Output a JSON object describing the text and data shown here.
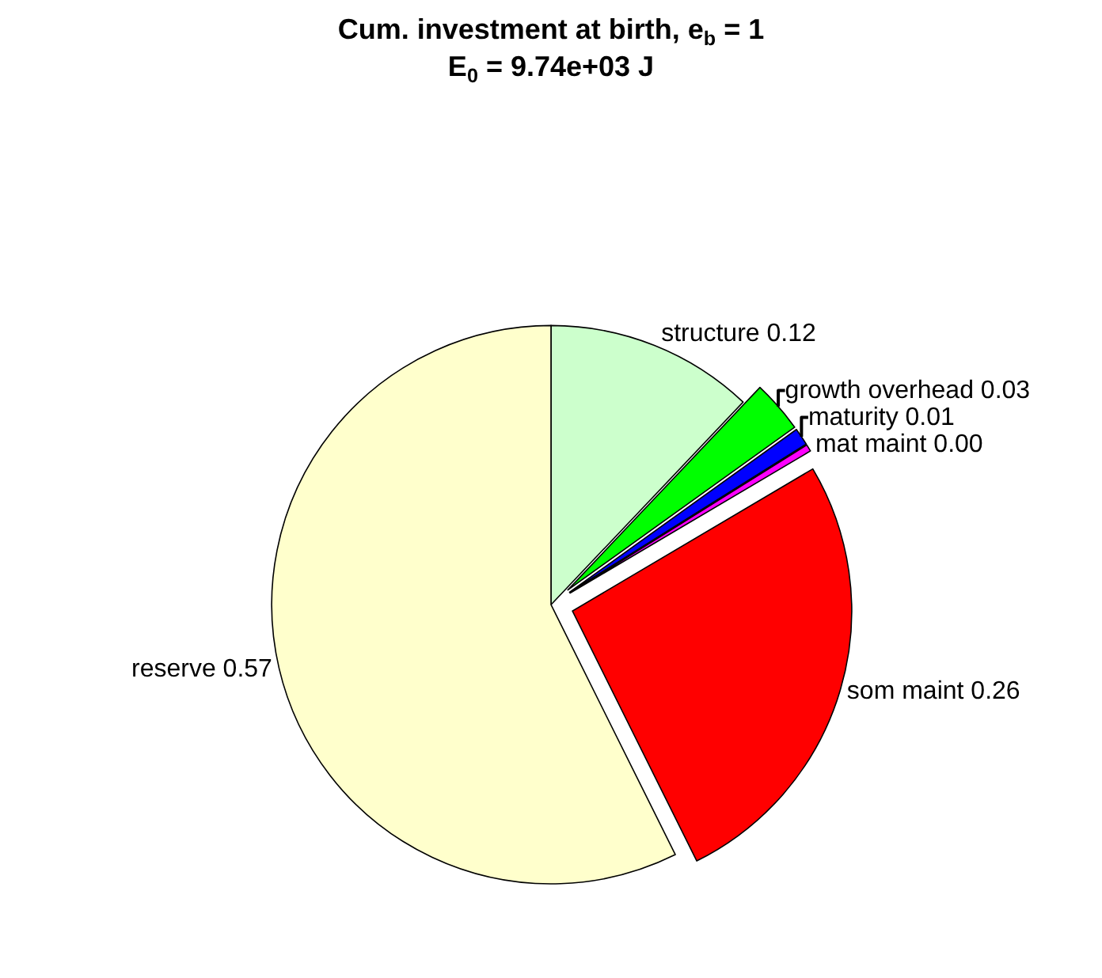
{
  "chart_data": {
    "type": "pie",
    "title": "Cum. investment at birth, e$_{b}$ = 1",
    "subtitle": "E$_{0}$ = 9.74e+03 J",
    "categories": [
      "structure",
      "growth overhead",
      "maturity",
      "mat maint",
      "som maint",
      "reserve"
    ],
    "values": [
      0.12,
      0.03,
      0.01,
      0.004,
      0.26,
      0.57
    ],
    "value_labels": [
      "0.12",
      "0.03",
      "0.01",
      "0.00",
      "0.26",
      "0.57"
    ],
    "colors": [
      "#ccffcc",
      "#00ff00",
      "#0000ff",
      "#ff00ff",
      "#ff0000",
      "#ffffcc"
    ],
    "legend": false
  }
}
